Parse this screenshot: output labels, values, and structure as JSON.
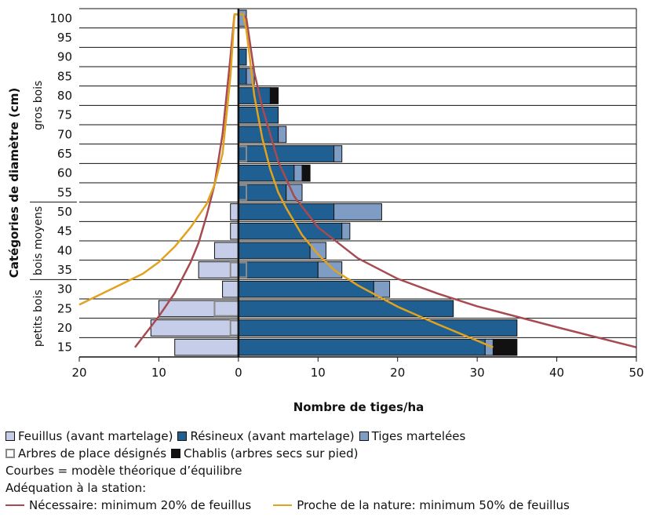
{
  "chart_data": {
    "type": "bar",
    "orientation": "horizontal-diverging",
    "xlabel": "Nombre de tiges/ha",
    "ylabel": "Catégories de diamètre (cm)",
    "categories": [
      "15",
      "20",
      "25",
      "30",
      "35",
      "40",
      "45",
      "50",
      "55",
      "60",
      "65",
      "70",
      "75",
      "80",
      "85",
      "90",
      "95",
      "100"
    ],
    "xlim": [
      -20,
      50
    ],
    "x_ticks": [
      -20,
      -10,
      0,
      10,
      20,
      30,
      40,
      50
    ],
    "x_tick_labels": [
      "20",
      "10",
      "0",
      "10",
      "20",
      "30",
      "40",
      "50"
    ],
    "groups": [
      {
        "label": "petits bois",
        "from": "15",
        "to": "30"
      },
      {
        "label": "bois moyens",
        "from": "35",
        "to": "50"
      },
      {
        "label": "gros bois",
        "from": "55",
        "to": "100"
      }
    ],
    "series": [
      {
        "name": "Feuillus (avant martelage)",
        "side": "left",
        "color": "#c5cde8",
        "values": [
          8,
          11,
          10,
          2,
          5,
          3,
          1,
          1,
          0,
          0,
          0,
          0,
          0,
          0,
          0,
          0,
          0,
          0
        ]
      },
      {
        "name": "Résineux (avant martelage)",
        "side": "right",
        "color": "#1f5f91",
        "values": [
          31,
          35,
          27,
          17,
          10,
          9,
          13,
          12,
          6,
          7,
          12,
          5,
          5,
          4,
          1,
          1,
          0,
          0
        ]
      },
      {
        "name": "Tiges martelées",
        "side": "right",
        "color": "#7f9cc4",
        "values": [
          1,
          0,
          0,
          2,
          3,
          2,
          1,
          6,
          2,
          1,
          1,
          1,
          0,
          0,
          1,
          0,
          0,
          1
        ]
      },
      {
        "name": "Chablis (arbres secs sur pied)",
        "side": "right",
        "color": "#111111",
        "values": [
          3,
          0,
          0,
          0,
          0,
          0,
          0,
          0,
          0,
          1,
          0,
          0,
          0,
          1,
          0,
          0,
          0,
          0
        ]
      },
      {
        "name": "Arbres de place désignés",
        "style": "outline",
        "color": "#8a8a8a",
        "values": [
          0,
          -1,
          -3,
          0,
          -1,
          0,
          0,
          0,
          0,
          0,
          0,
          0,
          0,
          0,
          0,
          0,
          0,
          0
        ]
      },
      {
        "name": "Arbres de place désignés",
        "style": "outline",
        "color": "#8a8a8a",
        "values": [
          0,
          0,
          0,
          0,
          1,
          0,
          0,
          0,
          1,
          0,
          1,
          0,
          0,
          0,
          0,
          0,
          0,
          0
        ]
      }
    ],
    "curves": [
      {
        "name": "Nécessaire: minimum 20% de feuillus",
        "color": "#a84a52",
        "points": [
          [
            50,
            15
          ],
          [
            40,
            20.2
          ],
          [
            30,
            25.6
          ],
          [
            25,
            28.9
          ],
          [
            20,
            32.7
          ],
          [
            15,
            38
          ],
          [
            10,
            46
          ],
          [
            7,
            54
          ],
          [
            5,
            63
          ],
          [
            3,
            77
          ],
          [
            2,
            86
          ],
          [
            1,
            100
          ],
          [
            0.5,
            101
          ],
          [
            -0.5,
            101
          ],
          [
            -1,
            90
          ],
          [
            -2,
            70
          ],
          [
            -3,
            57
          ],
          [
            -4,
            49
          ],
          [
            -5,
            42
          ],
          [
            -6,
            37
          ],
          [
            -8,
            29
          ],
          [
            -10,
            23
          ],
          [
            -13,
            15
          ]
        ]
      },
      {
        "name": "Proche de la nature: minimum 50% de feuillus",
        "color": "#e0a21f",
        "points": [
          [
            32,
            15
          ],
          [
            25,
            21
          ],
          [
            20,
            25.5
          ],
          [
            15,
            31
          ],
          [
            12,
            35
          ],
          [
            10,
            39
          ],
          [
            8,
            44
          ],
          [
            6,
            51
          ],
          [
            5,
            55
          ],
          [
            4,
            61
          ],
          [
            3,
            69
          ],
          [
            2,
            80
          ],
          [
            1,
            97
          ],
          [
            0.6,
            101
          ],
          [
            -0.5,
            101
          ],
          [
            -1,
            85
          ],
          [
            -2,
            65
          ],
          [
            -3,
            57
          ],
          [
            -4,
            52
          ],
          [
            -6,
            46
          ],
          [
            -8,
            41
          ],
          [
            -10,
            37
          ],
          [
            -12,
            34
          ],
          [
            -15,
            31
          ],
          [
            -18,
            28
          ],
          [
            -20,
            26
          ]
        ]
      }
    ]
  },
  "legend": {
    "row1": [
      "Feuillus (avant martelage)",
      "Résineux (avant martelage)",
      "Tiges martelées"
    ],
    "row2": [
      "Arbres de place désignés",
      "Chablis (arbres secs sur pied)"
    ],
    "note1": "Courbes = modèle théorique d’équilibre",
    "note2": "Adéquation à la station:",
    "curve1": "Nécessaire: minimum 20% de feuillus",
    "curve2": "Proche de la nature: minimum 50% de feuillus"
  },
  "colors": {
    "feuillus": "#c5cde8",
    "resineux": "#1f5f91",
    "martelees": "#7f9cc4",
    "chablis": "#111111",
    "arbres_place": "#8a8a8a",
    "curve_necessaire": "#a84a52",
    "curve_nature": "#e0a21f"
  }
}
